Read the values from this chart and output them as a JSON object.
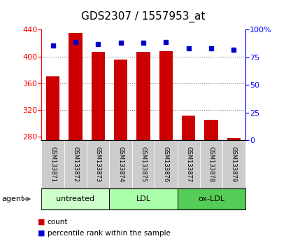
{
  "title": "GDS2307 / 1557953_at",
  "samples": [
    "GSM133871",
    "GSM133872",
    "GSM133873",
    "GSM133874",
    "GSM133875",
    "GSM133876",
    "GSM133877",
    "GSM133878",
    "GSM133879"
  ],
  "counts": [
    370,
    435,
    407,
    395,
    407,
    408,
    312,
    305,
    278
  ],
  "percentiles": [
    86,
    89,
    87,
    88,
    88,
    89,
    83,
    83,
    82
  ],
  "bar_color": "#cc0000",
  "dot_color": "#0000cc",
  "ylim_left": [
    275,
    440
  ],
  "ylim_right": [
    0,
    100
  ],
  "yticks_left": [
    280,
    320,
    360,
    400,
    440
  ],
  "yticks_right": [
    0,
    25,
    50,
    75,
    100
  ],
  "groups": [
    {
      "label": "untreated",
      "start": 0,
      "end": 3,
      "color": "#ccffcc"
    },
    {
      "label": "LDL",
      "start": 3,
      "end": 6,
      "color": "#aaffaa"
    },
    {
      "label": "ox-LDL",
      "start": 6,
      "end": 9,
      "color": "#55cc55"
    }
  ],
  "agent_label": "agent",
  "legend_count_label": "count",
  "legend_pct_label": "percentile rank within the sample",
  "bar_baseline": 275,
  "title_fontsize": 11,
  "tick_fontsize": 8,
  "sample_fontsize": 6,
  "group_fontsize": 8
}
